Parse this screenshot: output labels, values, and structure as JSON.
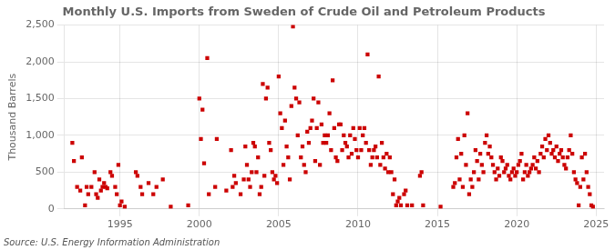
{
  "chart_data": {
    "type": "scatter",
    "title": "Monthly U.S. Imports from Sweden of Crude Oil and Petroleum Products",
    "y_label": "Thousand Barrels",
    "annotations": [
      "Source: U.S. Energy Information Administration"
    ],
    "color": "#CC0000",
    "marker": "square",
    "grid": true,
    "xlim": [
      1991.5,
      2025.5
    ],
    "xticks": [
      1995,
      2000,
      2005,
      2010,
      2015,
      2020,
      2025
    ],
    "ylim": [
      0,
      2500
    ],
    "yticks": [
      0,
      500,
      {
        "value": 1000,
        "label": "1,000"
      },
      {
        "value": 1500,
        "label": "1,500"
      },
      {
        "value": 2000,
        "label": "2,000"
      },
      {
        "value": 2500,
        "label": "2,500"
      }
    ],
    "x": [
      1992.0,
      1992.1,
      1992.3,
      1992.5,
      1992.6,
      1992.8,
      1992.9,
      1993.0,
      1993.2,
      1993.4,
      1993.5,
      1993.6,
      1993.7,
      1993.8,
      1993.9,
      1994.0,
      1994.1,
      1994.2,
      1994.4,
      1994.5,
      1994.7,
      1994.8,
      1994.9,
      1995.0,
      1995.1,
      1995.3,
      1996.0,
      1996.1,
      1996.3,
      1996.4,
      1996.8,
      1997.1,
      1997.3,
      1997.7,
      1998.2,
      1999.3,
      2000.0,
      2000.1,
      2000.2,
      2000.3,
      2000.5,
      2000.6,
      2001.0,
      2001.1,
      2001.7,
      2002.0,
      2002.1,
      2002.2,
      2002.3,
      2002.6,
      2002.8,
      2002.9,
      2003.0,
      2003.1,
      2003.2,
      2003.3,
      2003.4,
      2003.5,
      2003.6,
      2003.7,
      2003.8,
      2003.9,
      2004.0,
      2004.1,
      2004.2,
      2004.3,
      2004.4,
      2004.5,
      2004.6,
      2004.7,
      2004.8,
      2004.9,
      2005.0,
      2005.1,
      2005.2,
      2005.3,
      2005.4,
      2005.5,
      2005.6,
      2005.7,
      2005.8,
      2005.9,
      2006.0,
      2006.1,
      2006.2,
      2006.3,
      2006.4,
      2006.5,
      2006.6,
      2006.7,
      2006.8,
      2006.9,
      2007.0,
      2007.1,
      2007.2,
      2007.3,
      2007.4,
      2007.5,
      2007.6,
      2007.7,
      2007.8,
      2007.9,
      2008.0,
      2008.1,
      2008.2,
      2008.3,
      2008.4,
      2008.5,
      2008.6,
      2008.7,
      2008.8,
      2008.9,
      2009.0,
      2009.1,
      2009.2,
      2009.3,
      2009.4,
      2009.5,
      2009.6,
      2009.7,
      2009.8,
      2009.9,
      2010.0,
      2010.1,
      2010.2,
      2010.3,
      2010.4,
      2010.5,
      2010.6,
      2010.7,
      2010.8,
      2010.9,
      2011.0,
      2011.1,
      2011.2,
      2011.3,
      2011.4,
      2011.5,
      2011.6,
      2011.7,
      2011.8,
      2011.9,
      2012.0,
      2012.1,
      2012.2,
      2012.3,
      2012.4,
      2012.5,
      2012.6,
      2012.7,
      2012.9,
      2013.0,
      2013.1,
      2013.4,
      2013.9,
      2014.0,
      2014.1,
      2015.2,
      2016.0,
      2016.1,
      2016.2,
      2016.3,
      2016.4,
      2016.5,
      2016.6,
      2016.7,
      2016.8,
      2016.9,
      2017.0,
      2017.1,
      2017.2,
      2017.3,
      2017.4,
      2017.5,
      2017.6,
      2017.7,
      2017.8,
      2017.9,
      2018.0,
      2018.1,
      2018.2,
      2018.3,
      2018.4,
      2018.5,
      2018.6,
      2018.7,
      2018.8,
      2018.9,
      2019.0,
      2019.1,
      2019.2,
      2019.3,
      2019.4,
      2019.5,
      2019.6,
      2019.7,
      2019.8,
      2019.9,
      2020.0,
      2020.1,
      2020.2,
      2020.3,
      2020.4,
      2020.5,
      2020.6,
      2020.7,
      2020.8,
      2020.9,
      2021.0,
      2021.1,
      2021.2,
      2021.3,
      2021.4,
      2021.5,
      2021.6,
      2021.7,
      2021.8,
      2021.9,
      2022.0,
      2022.1,
      2022.2,
      2022.3,
      2022.4,
      2022.5,
      2022.6,
      2022.7,
      2022.8,
      2022.9,
      2023.0,
      2023.1,
      2023.2,
      2023.3,
      2023.4,
      2023.5,
      2023.6,
      2023.7,
      2023.8,
      2023.9,
      2024.0,
      2024.1,
      2024.2,
      2024.3,
      2024.4,
      2024.5,
      2024.6,
      2024.7,
      2024.8
    ],
    "values": [
      900,
      650,
      300,
      250,
      700,
      50,
      300,
      200,
      300,
      500,
      200,
      150,
      400,
      250,
      300,
      350,
      300,
      280,
      500,
      450,
      300,
      200,
      600,
      50,
      100,
      30,
      500,
      450,
      300,
      200,
      350,
      200,
      300,
      400,
      30,
      50,
      1500,
      950,
      1350,
      620,
      2050,
      200,
      300,
      950,
      250,
      800,
      300,
      450,
      350,
      200,
      400,
      850,
      600,
      400,
      300,
      500,
      900,
      850,
      500,
      700,
      200,
      300,
      1700,
      450,
      1500,
      1650,
      900,
      800,
      500,
      400,
      450,
      350,
      1800,
      1300,
      1100,
      600,
      1200,
      850,
      700,
      400,
      1400,
      2480,
      1650,
      1500,
      1000,
      1450,
      700,
      850,
      600,
      500,
      1050,
      900,
      1100,
      1200,
      1500,
      650,
      1100,
      1450,
      600,
      1150,
      900,
      1000,
      900,
      1000,
      1300,
      800,
      1750,
      1100,
      700,
      650,
      1150,
      1150,
      800,
      1000,
      900,
      850,
      700,
      1000,
      750,
      1100,
      950,
      800,
      700,
      1100,
      800,
      1000,
      1100,
      900,
      2100,
      800,
      600,
      700,
      800,
      850,
      700,
      1800,
      600,
      900,
      700,
      550,
      750,
      500,
      700,
      500,
      200,
      400,
      50,
      100,
      150,
      50,
      200,
      250,
      50,
      50,
      450,
      500,
      50,
      30,
      300,
      350,
      700,
      950,
      400,
      750,
      300,
      1000,
      600,
      1300,
      200,
      400,
      300,
      500,
      800,
      650,
      400,
      750,
      600,
      500,
      900,
      1000,
      750,
      850,
      700,
      600,
      500,
      400,
      550,
      450,
      700,
      650,
      500,
      550,
      600,
      450,
      400,
      500,
      550,
      450,
      500,
      600,
      650,
      750,
      400,
      500,
      600,
      450,
      500,
      550,
      600,
      700,
      550,
      650,
      500,
      750,
      850,
      700,
      950,
      800,
      1000,
      900,
      750,
      800,
      700,
      850,
      650,
      750,
      800,
      700,
      600,
      550,
      700,
      800,
      1000,
      750,
      500,
      400,
      350,
      50,
      300,
      700,
      400,
      750,
      500,
      300,
      200,
      50,
      30
    ]
  }
}
